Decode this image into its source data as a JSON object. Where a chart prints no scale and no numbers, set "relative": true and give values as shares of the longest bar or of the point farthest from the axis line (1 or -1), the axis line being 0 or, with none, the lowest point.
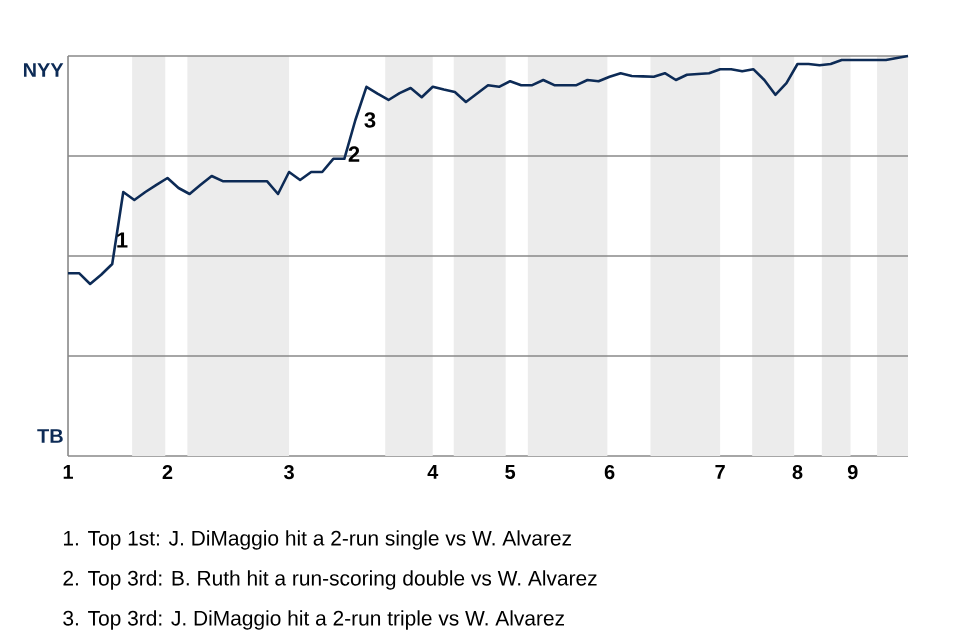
{
  "chart_data": {
    "type": "line",
    "relative": true,
    "categories": [
      "1",
      null,
      null,
      null,
      null,
      null,
      null,
      null,
      null,
      "2",
      null,
      null,
      null,
      null,
      null,
      null,
      null,
      null,
      null,
      null,
      "3",
      null,
      null,
      null,
      null,
      null,
      null,
      null,
      null,
      null,
      null,
      null,
      null,
      "4",
      null,
      null,
      null,
      null,
      null,
      null,
      "5",
      null,
      null,
      null,
      null,
      null,
      null,
      null,
      null,
      "6",
      null,
      null,
      null,
      null,
      null,
      null,
      null,
      null,
      null,
      "7",
      null,
      null,
      null,
      null,
      null,
      null,
      "8",
      null,
      null,
      null,
      null,
      "9",
      null,
      null,
      null,
      null,
      null
    ],
    "series": [
      {
        "color": "#0d2b56",
        "values": [
          0.457,
          0.457,
          0.43,
          0.453,
          0.48,
          0.66,
          0.64,
          0.66,
          0.678,
          0.695,
          0.67,
          0.655,
          0.678,
          0.7,
          0.687,
          0.687,
          0.687,
          0.687,
          0.687,
          0.655,
          0.71,
          0.69,
          0.71,
          0.71,
          0.743,
          0.743,
          0.84,
          0.923,
          0.906,
          0.89,
          0.907,
          0.92,
          0.897,
          0.923,
          0.916,
          0.91,
          0.885,
          0.906,
          0.927,
          0.923,
          0.937,
          0.927,
          0.927,
          0.94,
          0.927,
          0.927,
          0.927,
          0.94,
          0.937,
          0.948,
          0.957,
          0.95,
          0.949,
          0.948,
          0.957,
          0.94,
          0.953,
          0.955,
          0.957,
          0.967,
          0.967,
          0.962,
          0.967,
          0.94,
          0.903,
          0.932,
          0.98,
          0.98,
          0.977,
          0.98,
          0.99,
          0.99,
          0.99,
          0.99,
          0.99,
          0.995,
          1
        ]
      }
    ],
    "grid": "y",
    "marker": "none",
    "line_style": "solid",
    "annotations": [
      "NYY",
      "3",
      "2",
      "1",
      "TB",
      "1. Top 1st: J. DiMaggio hit a 2-run single vs W. Alvarez",
      "2. Top 3rd: B. Ruth hit a run-scoring double vs W. Alvarez",
      "3. Top 3rd: J. DiMaggio hit a 2-run triple vs W. Alvarez"
    ]
  }
}
